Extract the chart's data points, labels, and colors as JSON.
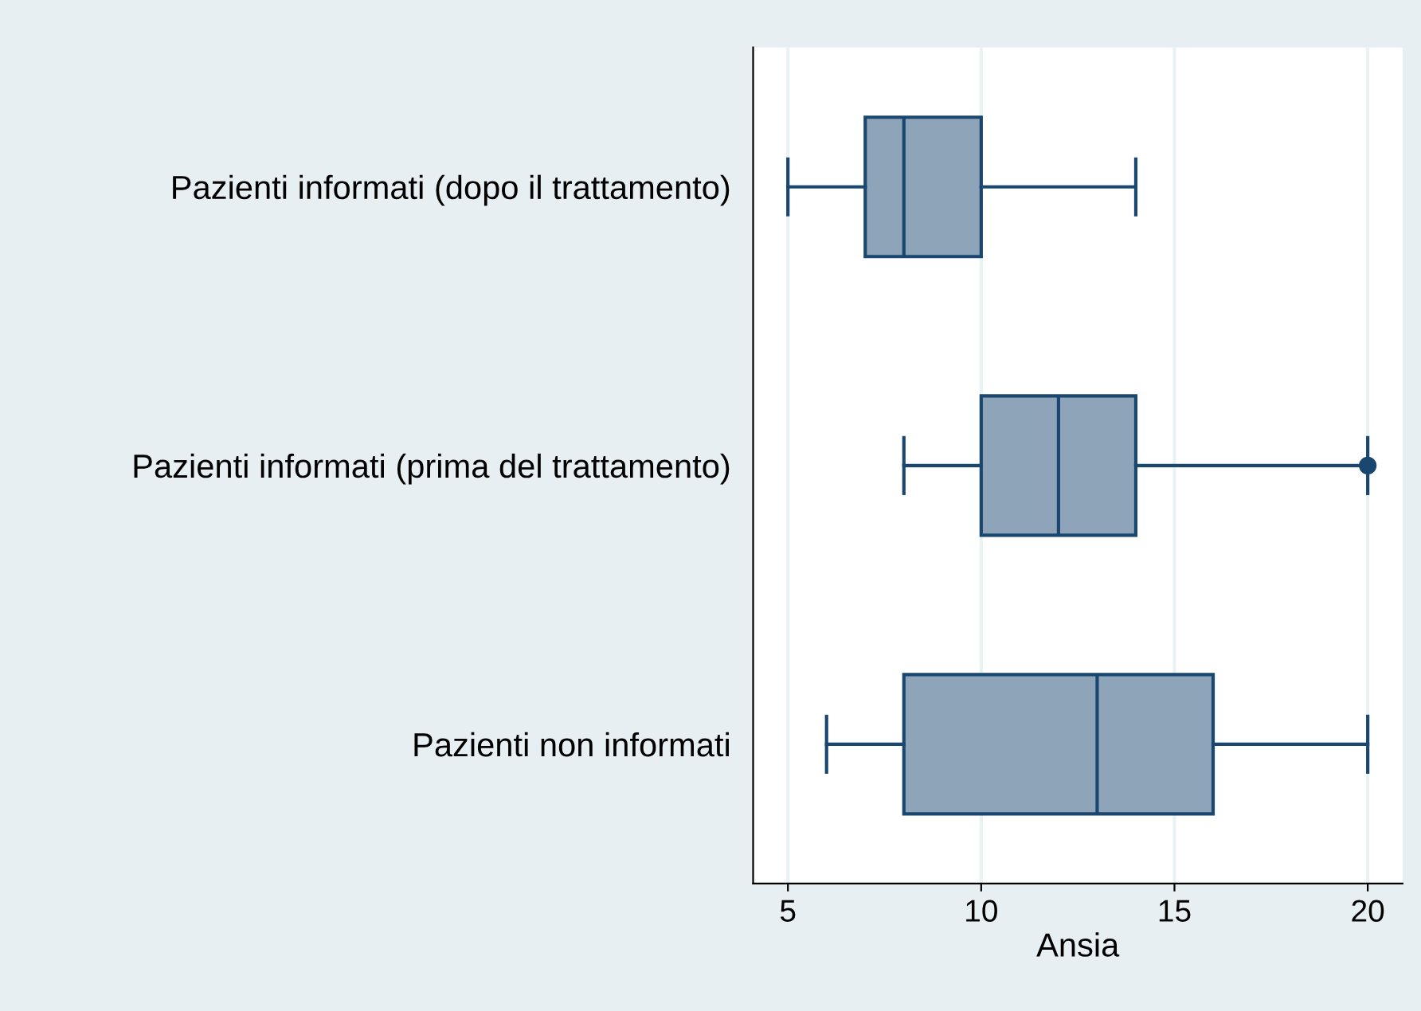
{
  "chart_data": {
    "type": "box",
    "orientation": "horizontal",
    "xlabel": "Ansia",
    "categories": [
      "Pazienti informati (dopo il trattamento)",
      "Pazienti informati (prima del trattamento)",
      "Pazienti non informati"
    ],
    "boxes": [
      {
        "low": 5,
        "q1": 7,
        "median": 8,
        "q3": 10,
        "high": 14
      },
      {
        "low": 8,
        "q1": 10,
        "median": 12,
        "q3": 14,
        "high": 20,
        "outliers": [
          20
        ]
      },
      {
        "low": 6,
        "q1": 8,
        "median": 13,
        "q3": 16,
        "high": 20
      }
    ],
    "color": "#8ea4b8",
    "xlim": [
      4.1,
      20.9
    ],
    "xticks": [
      5,
      10,
      15,
      20
    ],
    "grid": "x",
    "legend": false
  }
}
